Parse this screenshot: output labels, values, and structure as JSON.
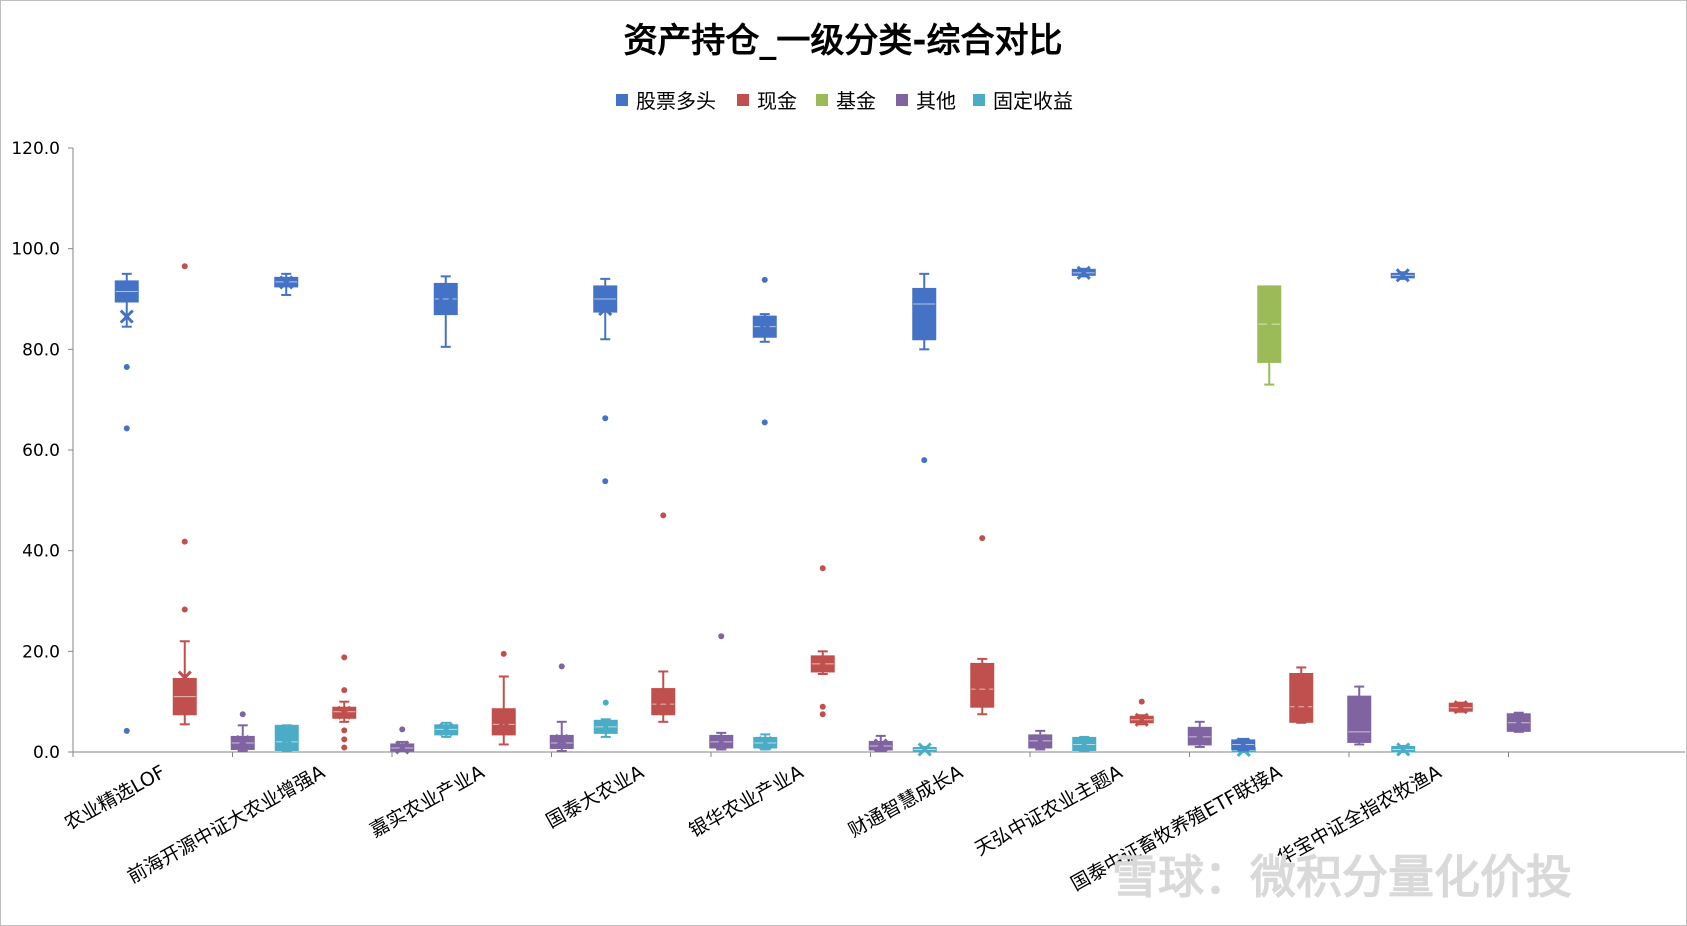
{
  "chart_data": {
    "type": "box",
    "title": "资产持仓_一级分类-综合对比",
    "xlabel": "",
    "ylabel": "",
    "ylim": [
      0,
      120
    ],
    "yticks": [
      "0.0",
      "20.0",
      "40.0",
      "60.0",
      "80.0",
      "100.0",
      "120.0"
    ],
    "legend_position": "top",
    "grid": false,
    "categories": [
      "农业精选LOF",
      "前海开源中证大农业增强A",
      "嘉实农业产业A",
      "国泰大农业A",
      "银华农业产业A",
      "财通智慧成长A",
      "天弘中证农业主题A",
      "国泰中证畜牧养殖ETF联接A",
      "华宝中证全指农牧渔A"
    ],
    "series": [
      {
        "name": "股票多头",
        "color": "#4472c4",
        "boxes": [
          {
            "min": 84.5,
            "q1": 89.5,
            "median": 91.5,
            "q3": 93.5,
            "max": 95,
            "mean": 86.5,
            "outliers": [
              76.5,
              64.3,
              4.2
            ]
          },
          {
            "min": 90.8,
            "q1": 92.5,
            "median": 93.4,
            "q3": 94.2,
            "max": 95,
            "mean": 93.3,
            "outliers": []
          },
          {
            "min": 80.5,
            "q1": 87,
            "median": 90,
            "q3": 93,
            "max": 94.5,
            "mean": 89,
            "outliers": []
          },
          {
            "min": 82,
            "q1": 87.5,
            "median": 90,
            "q3": 92.5,
            "max": 94,
            "mean": 88,
            "outliers": [
              66.3,
              53.8
            ]
          },
          {
            "min": 81.5,
            "q1": 82.5,
            "median": 84.5,
            "q3": 86.5,
            "max": 87,
            "mean": 84,
            "outliers": [
              93.8,
              65.5
            ]
          },
          {
            "min": 80,
            "q1": 82,
            "median": 89,
            "q3": 92,
            "max": 95,
            "mean": 86,
            "outliers": [
              58
            ]
          },
          {
            "min": 94.5,
            "q1": 94.8,
            "median": 95.2,
            "q3": 95.8,
            "max": 96,
            "mean": 95.2,
            "outliers": []
          },
          {
            "min": 0.3,
            "q1": 0.6,
            "median": 1.5,
            "q3": 2.3,
            "max": 2.6,
            "mean": 1.5,
            "outliers": []
          },
          {
            "min": 94,
            "q1": 94.3,
            "median": 94.7,
            "q3": 95,
            "max": 95.3,
            "mean": 94.7,
            "outliers": []
          }
        ]
      },
      {
        "name": "现金",
        "color": "#c0504d",
        "boxes": [
          {
            "min": 5.5,
            "q1": 7.5,
            "median": 11,
            "q3": 14.5,
            "max": 22,
            "mean": 14.8,
            "outliers": [
              96.5,
              41.8,
              28.3
            ]
          },
          {
            "min": 6,
            "q1": 6.8,
            "median": 8,
            "q3": 8.8,
            "max": 10,
            "mean": 7.8,
            "outliers": [
              18.8,
              12.3,
              4.3,
              2.5,
              0.9
            ]
          },
          {
            "min": 1.5,
            "q1": 3.5,
            "median": 5.5,
            "q3": 8.5,
            "max": 15,
            "mean": 6,
            "outliers": [
              19.5
            ]
          },
          {
            "min": 6,
            "q1": 7.5,
            "median": 9.5,
            "q3": 12.5,
            "max": 16,
            "mean": 10.5,
            "outliers": [
              47
            ]
          },
          {
            "min": 15.5,
            "q1": 16,
            "median": 17.5,
            "q3": 19,
            "max": 20,
            "mean": 17.5,
            "outliers": [
              36.5,
              9,
              7.5
            ]
          },
          {
            "min": 7.5,
            "q1": 9,
            "median": 12.5,
            "q3": 17.5,
            "max": 18.5,
            "mean": 13.5,
            "outliers": [
              42.5
            ]
          },
          {
            "min": 5.5,
            "q1": 5.9,
            "median": 6.4,
            "q3": 7,
            "max": 7.3,
            "mean": 6.4,
            "outliers": [
              10
            ]
          },
          {
            "min": 5.8,
            "q1": 6,
            "median": 9,
            "q3": 15.5,
            "max": 16.8,
            "mean": 10,
            "outliers": []
          },
          {
            "min": 8,
            "q1": 8.2,
            "median": 8.8,
            "q3": 9.6,
            "max": 9.8,
            "mean": 8.9,
            "outliers": []
          }
        ]
      },
      {
        "name": "基金",
        "color": "#9bbb59",
        "boxes": [
          null,
          null,
          null,
          null,
          null,
          null,
          null,
          {
            "min": 73,
            "q1": 77.5,
            "median": 85,
            "q3": 92.5,
            "max": 92.5,
            "mean": 85,
            "outliers": []
          },
          null
        ]
      },
      {
        "name": "其他",
        "color": "#8064a2",
        "boxes": [
          {
            "min": 0.2,
            "q1": 0.6,
            "median": 1.8,
            "q3": 3,
            "max": 5.3,
            "mean": 2,
            "outliers": [
              7.5
            ]
          },
          {
            "min": 0.2,
            "q1": 0.3,
            "median": 0.8,
            "q3": 1.5,
            "max": 2,
            "mean": 0.9,
            "outliers": [
              4.5
            ]
          },
          {
            "min": 0.2,
            "q1": 0.8,
            "median": 1.8,
            "q3": 3.2,
            "max": 6,
            "mean": 2.2,
            "outliers": [
              17
            ]
          },
          {
            "min": 0.5,
            "q1": 0.9,
            "median": 2,
            "q3": 3.2,
            "max": 3.8,
            "mean": 2,
            "outliers": [
              23
            ]
          },
          {
            "min": 0.2,
            "q1": 0.5,
            "median": 1.2,
            "q3": 2,
            "max": 3.2,
            "mean": 1.3,
            "outliers": []
          },
          {
            "min": 0.5,
            "q1": 0.9,
            "median": 2.2,
            "q3": 3.3,
            "max": 4.2,
            "mean": 2.2,
            "outliers": []
          },
          {
            "min": 1,
            "q1": 1.5,
            "median": 3,
            "q3": 4.8,
            "max": 6,
            "mean": 3.2,
            "outliers": []
          },
          {
            "min": 1.5,
            "q1": 2,
            "median": 4,
            "q3": 11,
            "max": 13,
            "mean": 6,
            "outliers": []
          },
          {
            "min": 4,
            "q1": 4.2,
            "median": 5.8,
            "q3": 7.5,
            "max": 7.8,
            "mean": 5.8,
            "outliers": []
          }
        ]
      },
      {
        "name": "固定收益",
        "color": "#4bacc6",
        "boxes": [
          {
            "min": 0.2,
            "q1": 0.4,
            "median": 2,
            "q3": 5.2,
            "max": 5.3,
            "mean": 2.5,
            "outliers": []
          },
          {
            "min": 3,
            "q1": 3.5,
            "median": 4.5,
            "q3": 5.3,
            "max": 5.8,
            "mean": 4.5,
            "outliers": []
          },
          {
            "min": 3,
            "q1": 3.8,
            "median": 5,
            "q3": 6.2,
            "max": 6.5,
            "mean": 5,
            "outliers": [
              9.8
            ]
          },
          {
            "min": 0.5,
            "q1": 0.9,
            "median": 1.8,
            "q3": 2.8,
            "max": 3.5,
            "mean": 1.8,
            "outliers": []
          },
          {
            "min": 0.1,
            "q1": 0.2,
            "median": 0.5,
            "q3": 0.8,
            "max": 1,
            "mean": 0.5,
            "outliers": []
          },
          {
            "min": 0.2,
            "q1": 0.4,
            "median": 1.5,
            "q3": 2.8,
            "max": 3,
            "mean": 1.5,
            "outliers": []
          },
          {
            "min": 0,
            "q1": 0.1,
            "median": 0.4,
            "q3": 0.8,
            "max": 1,
            "mean": 0.4,
            "outliers": []
          },
          {
            "min": 0,
            "q1": 0.1,
            "median": 0.5,
            "q3": 1,
            "max": 1.2,
            "mean": 0.5,
            "outliers": []
          },
          null
        ]
      }
    ]
  },
  "watermark": "雪球：微积分量化价投"
}
